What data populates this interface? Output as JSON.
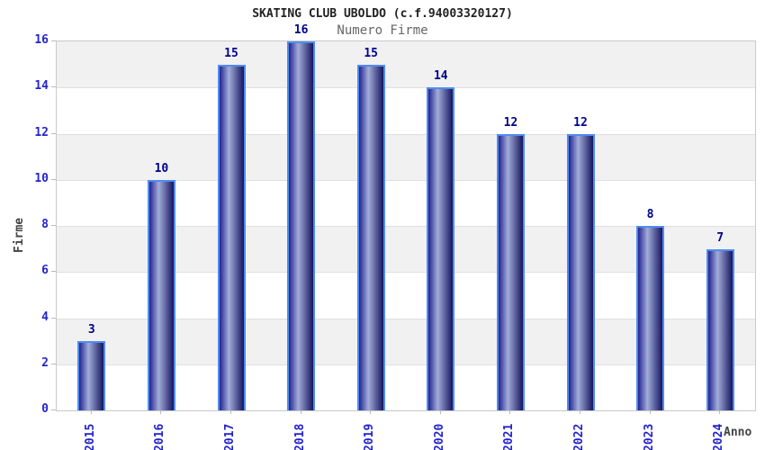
{
  "header": {
    "title": "SKATING CLUB UBOLDO (c.f.94003320127)",
    "subtitle": "Numero Firme"
  },
  "chart_data": {
    "type": "bar",
    "title": "SKATING CLUB UBOLDO (c.f.94003320127)",
    "subtitle": "Numero Firme",
    "categories": [
      "2015",
      "2016",
      "2017",
      "2018",
      "2019",
      "2020",
      "2021",
      "2022",
      "2023",
      "2024"
    ],
    "values": [
      3,
      10,
      15,
      16,
      15,
      14,
      12,
      12,
      8,
      7
    ],
    "xlabel": "Anno",
    "ylabel": "Firme",
    "ylim": [
      0,
      16
    ],
    "ytick_step": 2,
    "yticks": [
      0,
      2,
      4,
      6,
      8,
      10,
      12,
      14,
      16
    ],
    "grid": "alternating-horizontal-bands",
    "legend_position": "none",
    "colors": {
      "bar_edge_dark": "#23238f",
      "bar_highlight": "#a2acd9",
      "bar_end_dark": "#15155f",
      "bar_border": "#4f8cf0",
      "tick_label": "#2424cc",
      "value_label": "#00008b",
      "band_gray": "#f1f1f1",
      "band_white": "#ffffff",
      "gridline": "#e0e0e0",
      "axis_line": "#c9c9c9",
      "title": "#222222",
      "subtitle": "#666666",
      "axis_title": "#444444"
    }
  }
}
